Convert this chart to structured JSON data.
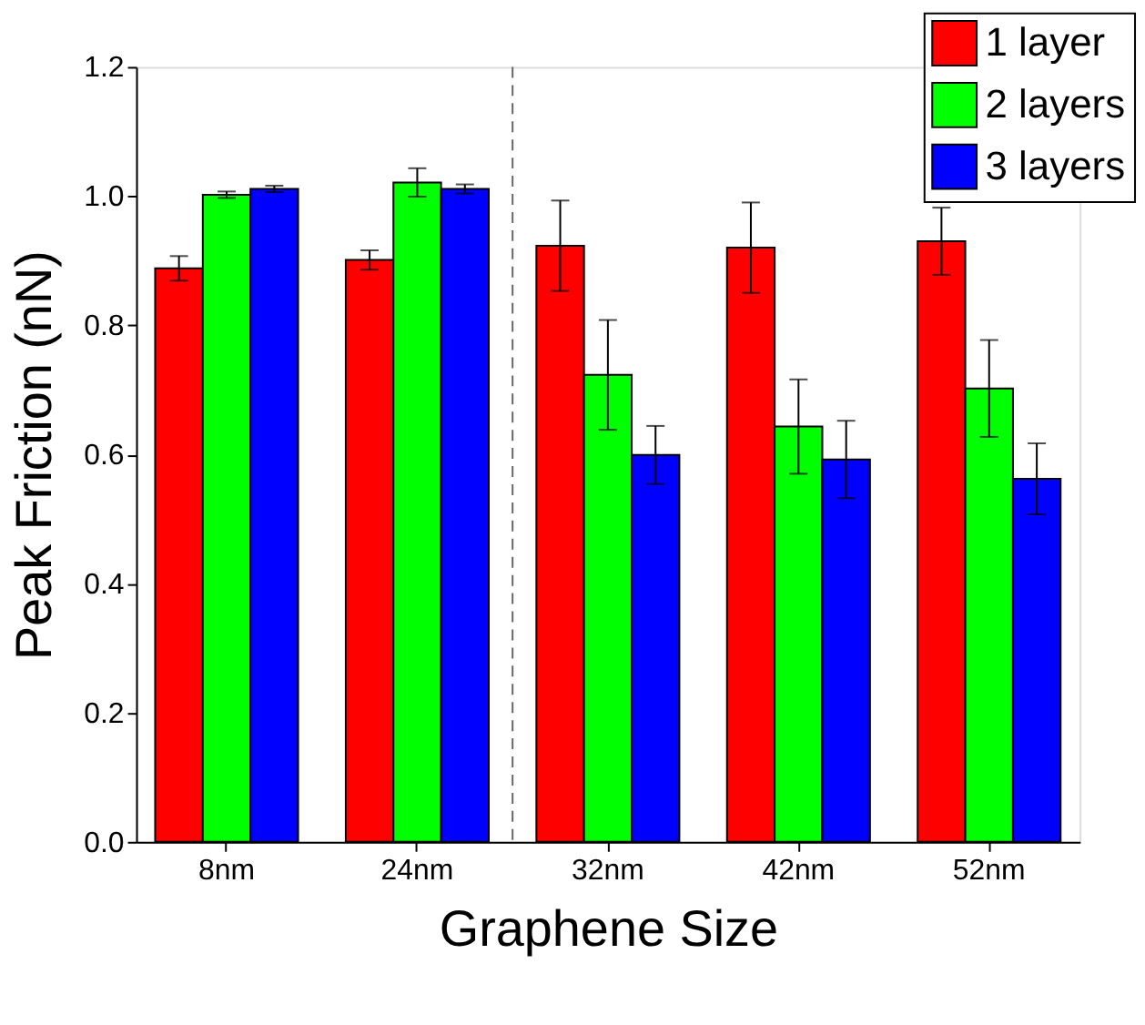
{
  "chart_data": {
    "type": "bar",
    "xlabel": "Graphene Size",
    "ylabel": "Peak Friction (nN)",
    "categories": [
      "8nm",
      "24nm",
      "32nm",
      "42nm",
      "52nm"
    ],
    "series": [
      {
        "name": "1 layer",
        "color": "#ff0000",
        "values": [
          0.888,
          0.901,
          0.923,
          0.92,
          0.93
        ],
        "errors": [
          0.019,
          0.015,
          0.07,
          0.07,
          0.052
        ]
      },
      {
        "name": "2 layers",
        "color": "#00ff00",
        "values": [
          1.002,
          1.021,
          0.723,
          0.643,
          0.702
        ],
        "errors": [
          0.005,
          0.022,
          0.085,
          0.073,
          0.075
        ]
      },
      {
        "name": "3 layers",
        "color": "#0000ff",
        "values": [
          1.011,
          1.011,
          0.599,
          0.592,
          0.562
        ],
        "errors": [
          0.005,
          0.007,
          0.045,
          0.06,
          0.055
        ]
      }
    ],
    "ylim": [
      0,
      1.2
    ],
    "yticks": [
      {
        "value": 0,
        "label": "0.0"
      },
      0.2,
      0.4,
      0.6,
      0.8,
      {
        "value": 1,
        "label": "1.0"
      },
      1.2
    ],
    "legend": "top right",
    "grid": false
  }
}
